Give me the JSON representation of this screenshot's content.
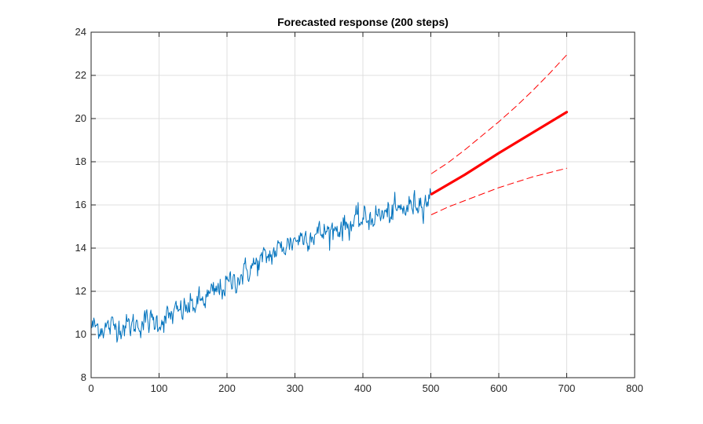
{
  "chart_data": {
    "type": "line",
    "title": "Forecasted response (200 steps)",
    "xlabel": "",
    "ylabel": "",
    "xlim": [
      0,
      800
    ],
    "ylim": [
      8,
      24
    ],
    "grid": true,
    "xticks": [
      0,
      100,
      200,
      300,
      400,
      500,
      600,
      700,
      800
    ],
    "yticks": [
      8,
      10,
      12,
      14,
      16,
      18,
      20,
      22,
      24
    ],
    "series": [
      {
        "name": "observed",
        "style": "solid-thin",
        "color": "#0072BD",
        "x_start": 1,
        "x_end": 500,
        "anchors": [
          [
            1,
            10.4
          ],
          [
            20,
            10.3
          ],
          [
            40,
            10.4
          ],
          [
            60,
            10.4
          ],
          [
            80,
            10.6
          ],
          [
            100,
            10.6
          ],
          [
            120,
            10.9
          ],
          [
            140,
            11.2
          ],
          [
            160,
            11.5
          ],
          [
            180,
            11.9
          ],
          [
            200,
            12.3
          ],
          [
            220,
            12.7
          ],
          [
            240,
            13.2
          ],
          [
            260,
            13.6
          ],
          [
            280,
            14.0
          ],
          [
            300,
            14.4
          ],
          [
            320,
            14.6
          ],
          [
            340,
            14.7
          ],
          [
            360,
            14.9
          ],
          [
            380,
            15.1
          ],
          [
            400,
            15.3
          ],
          [
            420,
            15.5
          ],
          [
            440,
            15.6
          ],
          [
            460,
            15.8
          ],
          [
            480,
            16.1
          ],
          [
            500,
            16.3
          ]
        ],
        "noise_sd": 0.28
      },
      {
        "name": "forecast",
        "style": "solid-thick",
        "color": "#FF0000",
        "x": [
          501,
          550,
          600,
          650,
          700
        ],
        "y": [
          16.5,
          17.4,
          18.4,
          19.35,
          20.3
        ]
      },
      {
        "name": "upper bound",
        "style": "dashed",
        "color": "#FF0000",
        "x": [
          501,
          525,
          550,
          575,
          600,
          625,
          650,
          675,
          700
        ],
        "y": [
          17.45,
          17.95,
          18.55,
          19.2,
          19.85,
          20.55,
          21.3,
          22.1,
          22.95
        ]
      },
      {
        "name": "lower bound",
        "style": "dashed",
        "color": "#FF0000",
        "x": [
          501,
          525,
          550,
          575,
          600,
          625,
          650,
          675,
          700
        ],
        "y": [
          15.55,
          15.9,
          16.2,
          16.5,
          16.8,
          17.05,
          17.3,
          17.5,
          17.7
        ]
      }
    ]
  }
}
